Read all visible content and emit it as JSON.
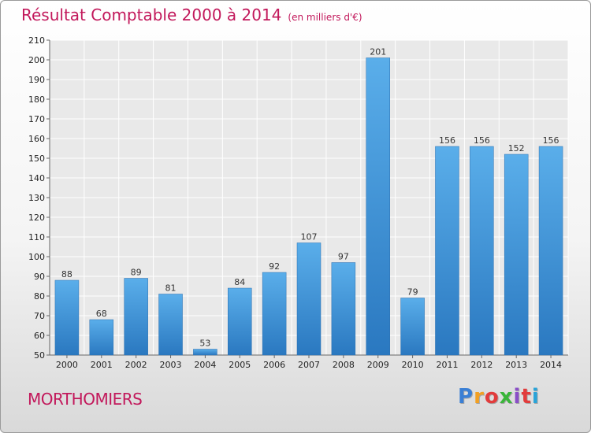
{
  "header": {
    "title": "Résultat Comptable 2000 à 2014",
    "subtitle": "(en milliers d'€)"
  },
  "footer": {
    "commune": "MORTHOMIERS",
    "brand": [
      "P",
      "r",
      "o",
      "x",
      "i",
      "t",
      "i"
    ],
    "brand_colors": [
      "#3a7fd5",
      "#f2a023",
      "#e23b3b",
      "#3ab53a",
      "#8a4fc7",
      "#e23b3b",
      "#29a3d8"
    ]
  },
  "chart_data": {
    "type": "bar",
    "title": "Résultat Comptable 2000 à 2014",
    "subtitle": "(en milliers d'€)",
    "xlabel": "",
    "ylabel": "",
    "categories": [
      "2000",
      "2001",
      "2002",
      "2003",
      "2004",
      "2005",
      "2006",
      "2007",
      "2008",
      "2009",
      "2010",
      "2011",
      "2012",
      "2013",
      "2014"
    ],
    "values": [
      88,
      68,
      89,
      81,
      53,
      84,
      92,
      107,
      97,
      201,
      79,
      156,
      156,
      152,
      156
    ],
    "ylim": [
      50,
      210
    ],
    "yticks": [
      50,
      60,
      70,
      80,
      90,
      100,
      110,
      120,
      130,
      140,
      150,
      160,
      170,
      180,
      190,
      200,
      210
    ],
    "grid": true,
    "bar_color": "#3b8fd9"
  }
}
